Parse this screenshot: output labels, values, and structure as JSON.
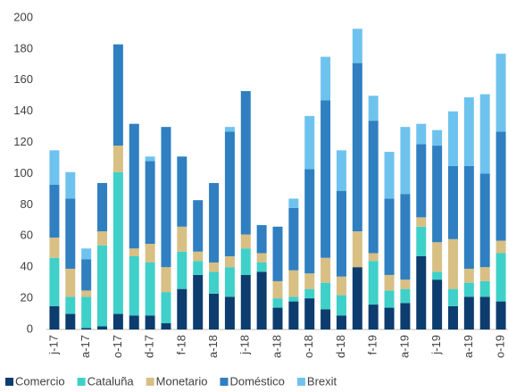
{
  "chart_data": {
    "type": "stacked_bar",
    "categories": [
      "j-17",
      null,
      "a-17",
      null,
      "o-17",
      null,
      "d-17",
      null,
      "f-18",
      null,
      "a-18",
      null,
      "j-18",
      null,
      "a-18",
      null,
      "o-18",
      null,
      "d-18",
      null,
      "f-19",
      null,
      "a-19",
      null,
      "j-19",
      null,
      "a-19",
      null,
      "o-19"
    ],
    "series": [
      {
        "name": "Comercio",
        "color": "#0d3c6e",
        "values": [
          15,
          10,
          1,
          2,
          10,
          9,
          9,
          4,
          26,
          35,
          23,
          21,
          35,
          37,
          14,
          18,
          20,
          13,
          9,
          40,
          16,
          14,
          17,
          47,
          32,
          15,
          21,
          21,
          18
        ]
      },
      {
        "name": "Cataluña",
        "color": "#3fd0c9",
        "values": [
          31,
          11,
          20,
          52,
          91,
          38,
          34,
          20,
          24,
          9,
          14,
          19,
          17,
          6,
          6,
          3,
          6,
          17,
          13,
          0,
          28,
          11,
          9,
          19,
          5,
          11,
          9,
          10,
          31
        ]
      },
      {
        "name": "Monetario",
        "color": "#d8bf84",
        "values": [
          13,
          18,
          4,
          9,
          17,
          5,
          12,
          16,
          16,
          6,
          6,
          7,
          9,
          6,
          11,
          17,
          10,
          16,
          12,
          23,
          5,
          10,
          6,
          6,
          19,
          32,
          9,
          9,
          8
        ]
      },
      {
        "name": "Doméstico",
        "color": "#2f7fc1",
        "values": [
          34,
          45,
          20,
          31,
          65,
          80,
          53,
          90,
          45,
          33,
          51,
          80,
          92,
          18,
          35,
          40,
          67,
          101,
          55,
          108,
          85,
          49,
          55,
          47,
          62,
          47,
          66,
          60,
          70
        ]
      },
      {
        "name": "Brexit",
        "color": "#6ec3ee",
        "values": [
          22,
          17,
          7,
          0,
          0,
          0,
          3,
          0,
          0,
          0,
          0,
          3,
          0,
          0,
          0,
          6,
          34,
          28,
          26,
          22,
          16,
          30,
          43,
          13,
          10,
          35,
          44,
          51,
          50
        ]
      }
    ],
    "ylim": [
      0,
      200
    ],
    "yticks": [
      0,
      20,
      40,
      60,
      80,
      100,
      120,
      140,
      160,
      180,
      200
    ],
    "grid": false,
    "legend": "bottom"
  }
}
